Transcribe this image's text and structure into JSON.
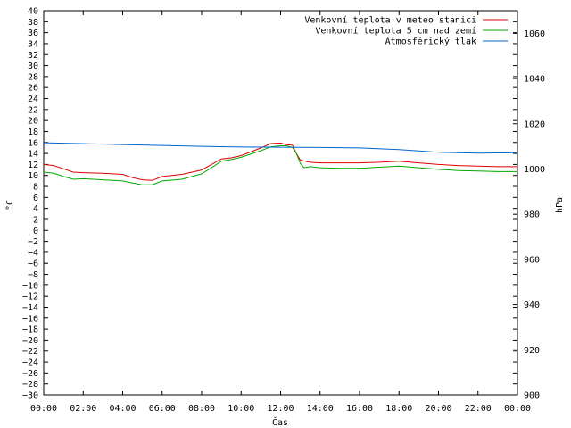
{
  "chart_data": {
    "type": "line",
    "xlabel": "Čas",
    "ylabel_left": "°C",
    "ylabel_right": "hPa",
    "x_ticks": [
      "00:00",
      "02:00",
      "04:00",
      "06:00",
      "08:00",
      "10:00",
      "12:00",
      "14:00",
      "16:00",
      "18:00",
      "20:00",
      "22:00",
      "00:00"
    ],
    "x_range": [
      0,
      24
    ],
    "ylim_left": [
      -30,
      40
    ],
    "ylim_right": [
      900,
      1070
    ],
    "y_ticks_left": [
      -30,
      -28,
      -26,
      -24,
      -22,
      -20,
      -18,
      -16,
      -14,
      -12,
      -10,
      -8,
      -6,
      -4,
      -2,
      0,
      2,
      4,
      6,
      8,
      10,
      12,
      14,
      16,
      18,
      20,
      22,
      24,
      26,
      28,
      30,
      32,
      34,
      36,
      38,
      40
    ],
    "y_ticks_right": [
      900,
      920,
      940,
      960,
      980,
      1000,
      1020,
      1040,
      1060
    ],
    "grid": false,
    "legend_position": "top-right",
    "series": [
      {
        "name": "Venkovní teplota v meteo stanici",
        "axis": "left",
        "color": "#dd0000",
        "x": [
          0,
          0.5,
          1,
          1.5,
          2,
          3,
          4,
          4.5,
          5,
          5.5,
          6,
          7,
          8,
          8.5,
          9,
          9.5,
          10,
          11,
          11.5,
          12,
          12.3,
          12.6,
          12.8,
          13,
          13.5,
          14,
          15,
          16,
          17,
          18,
          19,
          20,
          21,
          22,
          23,
          24
        ],
        "y": [
          12,
          11.8,
          11.2,
          10.6,
          10.5,
          10.4,
          10.2,
          9.6,
          9.2,
          9.1,
          9.8,
          10.2,
          11,
          12,
          13,
          13.2,
          13.6,
          15,
          15.8,
          15.9,
          15.6,
          15.5,
          14,
          12.8,
          12.4,
          12.3,
          12.3,
          12.3,
          12.4,
          12.6,
          12.3,
          12,
          11.8,
          11.7,
          11.6,
          11.6
        ]
      },
      {
        "name": "Venkovní teplota 5 cm nad zemí",
        "axis": "left",
        "color": "#00aa00",
        "x": [
          0,
          0.5,
          1,
          1.5,
          2,
          3,
          4,
          4.5,
          5,
          5.5,
          6,
          7,
          8,
          8.5,
          9,
          9.5,
          10,
          11,
          11.5,
          12,
          12.3,
          12.6,
          12.8,
          13,
          13.2,
          13.5,
          14,
          15,
          16,
          17,
          18,
          19,
          20,
          21,
          22,
          23,
          24
        ],
        "y": [
          10.6,
          10.4,
          9.8,
          9.3,
          9.4,
          9.2,
          9,
          8.6,
          8.3,
          8.3,
          9,
          9.3,
          10.3,
          11.4,
          12.6,
          12.9,
          13.3,
          14.5,
          15.2,
          15.4,
          15.4,
          15.1,
          14,
          12.2,
          11.4,
          11.6,
          11.4,
          11.3,
          11.3,
          11.5,
          11.7,
          11.4,
          11.1,
          10.9,
          10.8,
          10.7,
          10.7
        ]
      },
      {
        "name": "Atmosférický tlak",
        "axis": "right",
        "color": "#0066cc",
        "x": [
          0,
          2,
          4,
          6,
          8,
          10,
          12,
          14,
          16,
          18,
          20,
          22,
          24
        ],
        "y": [
          1011.6,
          1011.2,
          1010.8,
          1010.4,
          1010.0,
          1009.7,
          1009.6,
          1009.5,
          1009.3,
          1008.6,
          1007.4,
          1007.0,
          1007.2
        ]
      }
    ]
  }
}
